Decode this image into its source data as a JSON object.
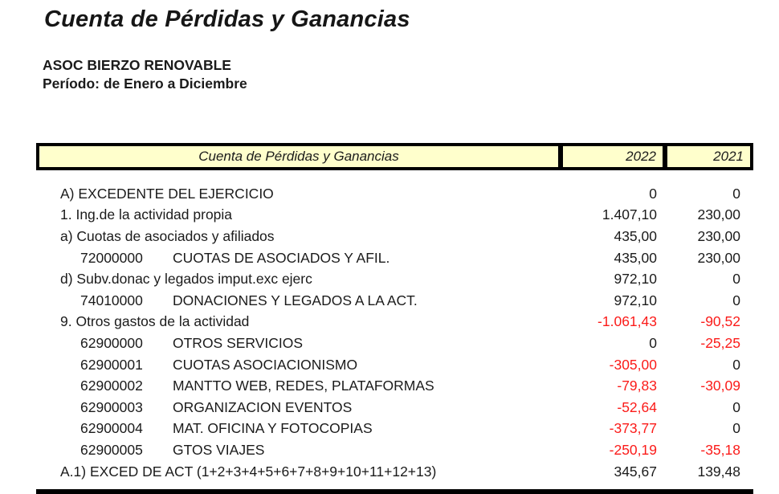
{
  "page": {
    "title": "Cuenta de Pérdidas y Ganancias",
    "company": "ASOC BIERZO RENOVABLE",
    "period": "Período: de Enero a Diciembre"
  },
  "colors": {
    "header_fill": "#ffffcc",
    "border": "#000000",
    "negative_value": "#fb1b19",
    "text": "#1b1b1b"
  },
  "table": {
    "header": {
      "title": "Cuenta de Pérdidas y Ganancias",
      "col_2022": "2022",
      "col_2021": "2021"
    },
    "rows": [
      {
        "code": "",
        "label": "A) EXCEDENTE DEL EJERCICIO",
        "v2022": "0",
        "v2021": "0"
      },
      {
        "code": "",
        "label": "1. Ing.de la actividad propia",
        "v2022": "1.407,10",
        "v2021": "230,00"
      },
      {
        "code": "",
        "label": "a) Cuotas de asociados y afiliados",
        "v2022": "435,00",
        "v2021": "230,00"
      },
      {
        "code": "72000000",
        "label": "CUOTAS DE ASOCIADOS Y AFIL.",
        "v2022": "435,00",
        "v2021": "230,00"
      },
      {
        "code": "",
        "label": "d) Subv.donac y legados imput.exc ejerc",
        "v2022": "972,10",
        "v2021": "0"
      },
      {
        "code": "74010000",
        "label": "DONACIONES Y LEGADOS A LA ACT.",
        "v2022": "972,10",
        "v2021": "0"
      },
      {
        "code": "",
        "label": "9. Otros gastos de la actividad",
        "v2022": "-1.061,43",
        "v2021": "-90,52"
      },
      {
        "code": "62900000",
        "label": "OTROS SERVICIOS",
        "v2022": "0",
        "v2021": "-25,25"
      },
      {
        "code": "62900001",
        "label": "CUOTAS ASOCIACIONISMO",
        "v2022": "-305,00",
        "v2021": "0"
      },
      {
        "code": "62900002",
        "label": "MANTTO WEB, REDES, PLATAFORMAS",
        "v2022": "-79,83",
        "v2021": "-30,09"
      },
      {
        "code": "62900003",
        "label": "ORGANIZACION EVENTOS",
        "v2022": "-52,64",
        "v2021": "0"
      },
      {
        "code": "62900004",
        "label": "MAT. OFICINA Y FOTOCOPIAS",
        "v2022": "-373,77",
        "v2021": "0"
      },
      {
        "code": "62900005",
        "label": "GTOS VIAJES",
        "v2022": "-250,19",
        "v2021": "-35,18"
      },
      {
        "code": "",
        "label": "A.1) EXCED DE ACT (1+2+3+4+5+6+7+8+9+10+11+12+13)",
        "v2022": "345,67",
        "v2021": "139,48"
      }
    ]
  }
}
